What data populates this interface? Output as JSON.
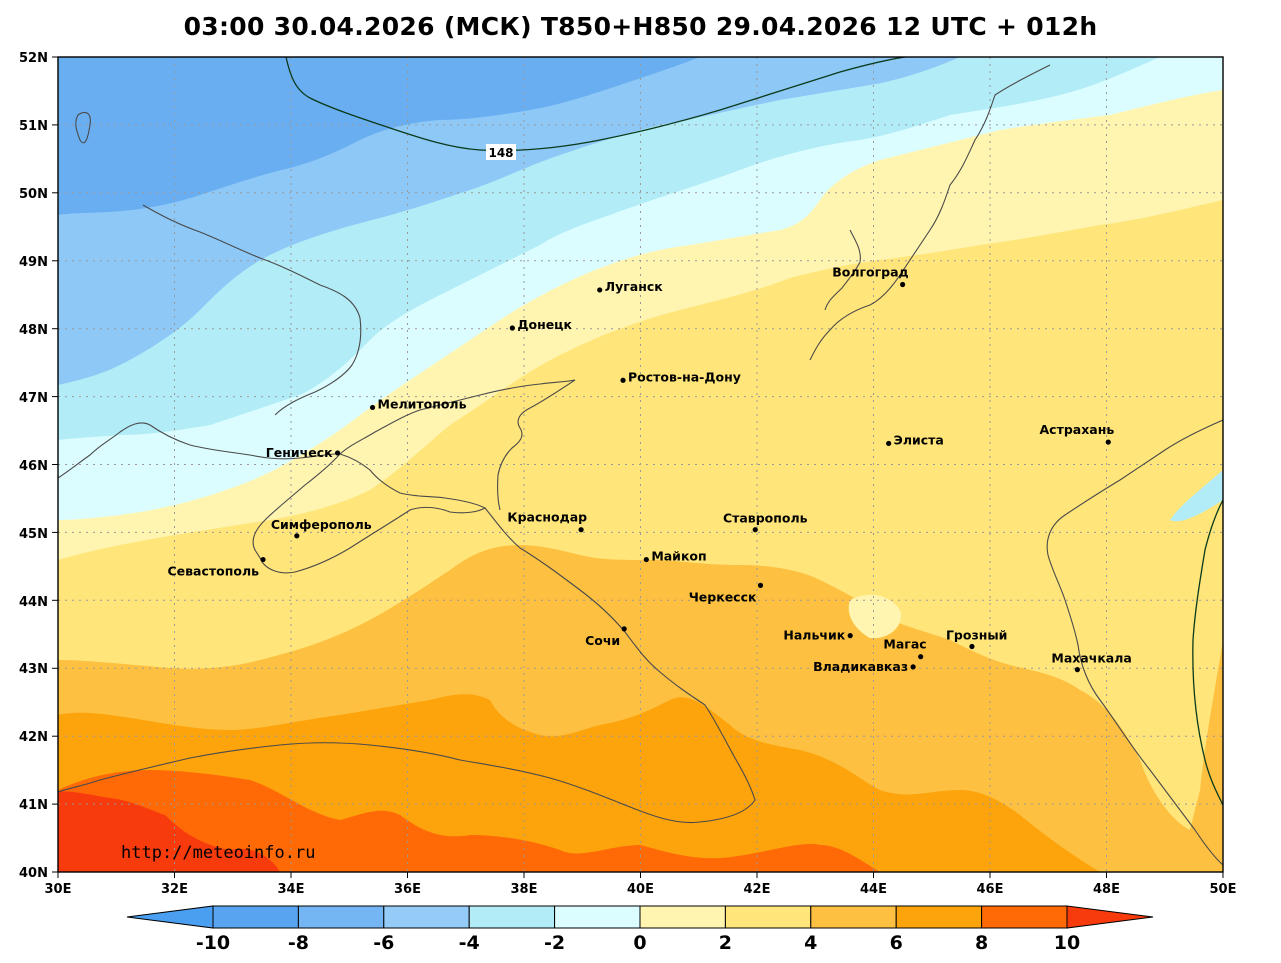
{
  "title": "03:00 30.04.2026 (МСК) T850+H850 29.04.2026 12 UTC + 012h",
  "source_url": "http://meteoinfo.ru",
  "colors": {
    "band_m10": "#4a9ff0",
    "band_m8": "#6aaef2",
    "band_m6": "#8dc8f7",
    "band_m4": "#b2ecf7",
    "band_m2": "#dcfdff",
    "band_0": "#fff5b0",
    "band_2": "#ffe57a",
    "band_4": "#fdc040",
    "band_6": "#fda30c",
    "band_8": "#ff6a07",
    "band_10": "#f73b0c",
    "coast": "#444444",
    "contour": "#000000",
    "grid": "#999999"
  },
  "axes": {
    "lon_ticks": [
      "30E",
      "32E",
      "34E",
      "36E",
      "38E",
      "40E",
      "42E",
      "44E",
      "46E",
      "48E",
      "50E"
    ],
    "lat_ticks": [
      "52N",
      "51N",
      "50N",
      "49N",
      "48N",
      "47N",
      "46N",
      "45N",
      "44N",
      "43N",
      "42N",
      "41N",
      "40N"
    ]
  },
  "contour": {
    "label": "148"
  },
  "legend": {
    "labels": [
      "-10",
      "-8",
      "-6",
      "-4",
      "-2",
      "0",
      "2",
      "4",
      "6",
      "8",
      "10"
    ]
  },
  "cities": [
    {
      "name": "Луганск",
      "lon": 39.3,
      "lat": 48.57,
      "anchor": "right"
    },
    {
      "name": "Донецк",
      "lon": 37.8,
      "lat": 48.01,
      "anchor": "right"
    },
    {
      "name": "Волгоград",
      "lon": 44.5,
      "lat": 48.65,
      "anchor": "above-left"
    },
    {
      "name": "Ростов-на-Дону",
      "lon": 39.7,
      "lat": 47.24,
      "anchor": "right"
    },
    {
      "name": "Мелитополь",
      "lon": 35.4,
      "lat": 46.84,
      "anchor": "right"
    },
    {
      "name": "Геническ",
      "lon": 34.8,
      "lat": 46.17,
      "anchor": "left"
    },
    {
      "name": "Элиста",
      "lon": 44.26,
      "lat": 46.31,
      "anchor": "right"
    },
    {
      "name": "Астрахань",
      "lon": 48.03,
      "lat": 46.33,
      "anchor": "above-left"
    },
    {
      "name": "Симферополь",
      "lon": 34.1,
      "lat": 44.95,
      "anchor": "above-right"
    },
    {
      "name": "Севастополь",
      "lon": 33.52,
      "lat": 44.6,
      "anchor": "below-left"
    },
    {
      "name": "Краснодар",
      "lon": 38.98,
      "lat": 45.04,
      "anchor": "above-left"
    },
    {
      "name": "Майкоп",
      "lon": 40.1,
      "lat": 44.6,
      "anchor": "right"
    },
    {
      "name": "Ставрополь",
      "lon": 41.97,
      "lat": 45.04,
      "anchor": "above"
    },
    {
      "name": "Черкесск",
      "lon": 42.06,
      "lat": 44.22,
      "anchor": "below-left"
    },
    {
      "name": "Сочи",
      "lon": 39.72,
      "lat": 43.58,
      "anchor": "below-left"
    },
    {
      "name": "Нальчик",
      "lon": 43.6,
      "lat": 43.48,
      "anchor": "left"
    },
    {
      "name": "Магас",
      "lon": 44.81,
      "lat": 43.17,
      "anchor": "above-left"
    },
    {
      "name": "Владикавказ",
      "lon": 44.68,
      "lat": 43.02,
      "anchor": "left"
    },
    {
      "name": "Грозный",
      "lon": 45.69,
      "lat": 43.32,
      "anchor": "above-right"
    },
    {
      "name": "Махачкала",
      "lon": 47.5,
      "lat": 42.98,
      "anchor": "above-right"
    }
  ]
}
